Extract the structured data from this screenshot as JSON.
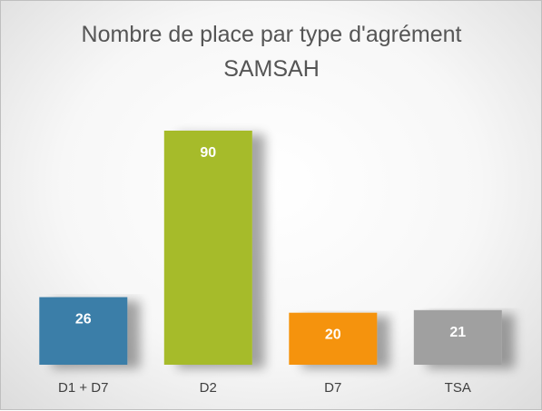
{
  "chart_data": {
    "type": "bar",
    "title": "Nombre de place par type d'agrément",
    "subtitle": "SAMSAH",
    "categories": [
      "D1 + D7",
      "D2",
      "D7",
      "TSA"
    ],
    "values": [
      26,
      90,
      20,
      21
    ],
    "bar_colors": [
      "#3a7ea8",
      "#a6bb2a",
      "#f5930a",
      "#a0a0a0"
    ],
    "value_labels_inside": true,
    "grid": false,
    "legend": "none",
    "ylim": [
      0,
      100
    ]
  }
}
